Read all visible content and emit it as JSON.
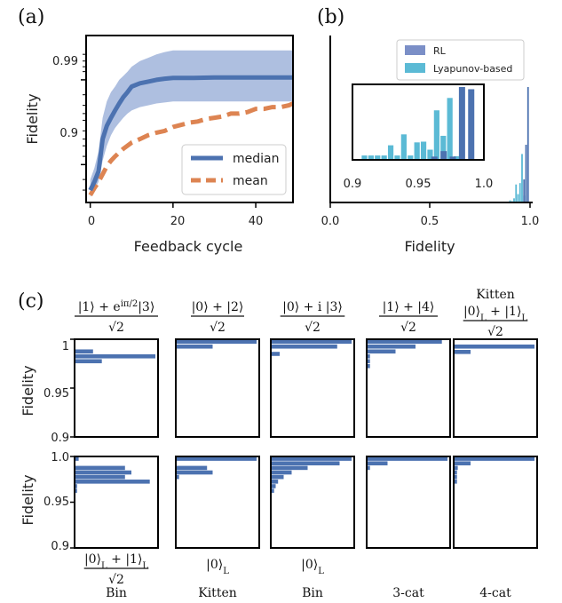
{
  "panel_labels": {
    "a": "(a)",
    "b": "(b)",
    "c": "(c)"
  },
  "colors": {
    "rl": "#4c72b0",
    "rl_band": "#a5b8dd",
    "mean": "#dd8452",
    "lyap": "#5bbad5",
    "axis": "#000000"
  },
  "panel_a": {
    "xlabel": "Feedback cycle",
    "ylabel": "Fidelity",
    "xticks": [
      "0",
      "20",
      "40"
    ],
    "yticks": [
      "0.9",
      "0.99"
    ],
    "legend": [
      "median",
      "mean"
    ]
  },
  "panel_b": {
    "xlabel": "Fidelity",
    "xticks": [
      "0.0",
      "0.5",
      "1.0"
    ],
    "inset_xticks": [
      "0.9",
      "0.95",
      "1.0"
    ],
    "legend": [
      "RL",
      "Lyapunov-based"
    ]
  },
  "panel_c": {
    "ylabel_top": "Fidelity",
    "ylabel_bottom": "Fidelity",
    "top_yticks": [
      "1",
      "0.95",
      "0.9"
    ],
    "bottom_yticks": [
      "1.0",
      "0.95",
      "0.9"
    ],
    "top_titles": [
      {
        "kind": "frac",
        "num": "|1⟩ + e^{iπ/2}|3⟩",
        "den": "√2"
      },
      {
        "kind": "frac",
        "num": "|0⟩ + |2⟩",
        "den": "√2"
      },
      {
        "kind": "frac",
        "num": "|0⟩ + i |3⟩",
        "den": "√2"
      },
      {
        "kind": "frac",
        "num": "|1⟩ +  |4⟩",
        "den": "√2"
      },
      {
        "kind": "frac",
        "pre": "Kitten",
        "num": "|0⟩L + |1⟩L",
        "den": "√2"
      }
    ],
    "bottom_titles": [
      {
        "kind": "frac",
        "num": "|0⟩L + |1⟩L",
        "den": "√2",
        "name": "Bin"
      },
      {
        "kind": "state",
        "num": "|0⟩L",
        "name": "Kitten"
      },
      {
        "kind": "state",
        "num": "|0⟩L",
        "name": "Bin"
      },
      {
        "kind": "none",
        "name": "3-cat"
      },
      {
        "kind": "none",
        "name": "4-cat"
      }
    ]
  },
  "chart_data": [
    {
      "type": "line",
      "panel": "a",
      "xlabel": "Feedback cycle",
      "ylabel": "Fidelity",
      "xlim": [
        -1,
        49
      ],
      "yscale": "log(1-F)",
      "ylim": [
        0.72,
        0.997
      ],
      "series": [
        {
          "name": "median",
          "x": [
            0,
            1,
            2,
            3,
            4,
            5,
            6,
            7,
            8,
            9,
            10,
            12,
            14,
            16,
            18,
            20,
            25,
            30,
            35,
            40,
            45,
            49
          ],
          "y": [
            0.8,
            0.84,
            0.88,
            0.95,
            0.965,
            0.972,
            0.977,
            0.981,
            0.984,
            0.986,
            0.988,
            0.989,
            0.9895,
            0.99,
            0.9903,
            0.9905,
            0.9905,
            0.9906,
            0.9906,
            0.9906,
            0.9906,
            0.9906
          ]
        },
        {
          "name": "mean",
          "x": [
            0,
            1,
            2,
            3,
            4,
            5,
            6,
            8,
            10,
            12,
            14,
            16,
            18,
            20,
            22,
            24,
            26,
            28,
            30,
            32,
            34,
            36,
            38,
            40,
            42,
            44,
            46,
            48,
            49
          ],
          "y": [
            0.77,
            0.81,
            0.84,
            0.87,
            0.895,
            0.91,
            0.92,
            0.935,
            0.945,
            0.95,
            0.955,
            0.958,
            0.96,
            0.964,
            0.966,
            0.968,
            0.969,
            0.971,
            0.972,
            0.973,
            0.975,
            0.975,
            0.976,
            0.978,
            0.978,
            0.979,
            0.979,
            0.98,
            0.981
          ]
        }
      ],
      "band": {
        "x": [
          0,
          1,
          2,
          3,
          4,
          5,
          6,
          7,
          8,
          9,
          10,
          12,
          14,
          16,
          18,
          20,
          25,
          30,
          35,
          40,
          45,
          49
        ],
        "lower": [
          0.76,
          0.8,
          0.84,
          0.91,
          0.94,
          0.955,
          0.963,
          0.968,
          0.972,
          0.975,
          0.977,
          0.979,
          0.98,
          0.981,
          0.9815,
          0.982,
          0.982,
          0.982,
          0.982,
          0.982,
          0.982,
          0.982
        ],
        "upper": [
          0.85,
          0.89,
          0.93,
          0.972,
          0.982,
          0.986,
          0.988,
          0.99,
          0.991,
          0.992,
          0.993,
          0.994,
          0.9945,
          0.995,
          0.9953,
          0.9955,
          0.9955,
          0.9955,
          0.9955,
          0.9955,
          0.9955,
          0.9955
        ]
      },
      "legend": "lower right"
    },
    {
      "type": "bar",
      "panel": "b",
      "xlabel": "Fidelity",
      "xlim": [
        0,
        1
      ],
      "legend": "top right",
      "series": [
        {
          "name": "RL",
          "x": [
            0.97,
            0.98,
            0.99
          ],
          "counts": [
            0.2,
            0.5,
            1.0
          ]
        },
        {
          "name": "Lyapunov-based",
          "x": [
            0.9,
            0.91,
            0.92,
            0.93,
            0.94,
            0.95,
            0.96,
            0.97
          ],
          "counts": [
            0.03,
            0.02,
            0.06,
            0.26,
            0.12,
            0.28,
            0.7,
            0.1
          ]
        }
      ],
      "inset": {
        "xlim": [
          0.9,
          1.0
        ],
        "rl": [
          [
            0.96,
            0.045
          ],
          [
            0.967,
            0.12
          ],
          [
            0.974,
            0.045
          ],
          [
            0.981,
            1.0
          ],
          [
            0.988,
            0.97
          ]
        ],
        "lyapunov": [
          [
            0.907,
            0.06
          ],
          [
            0.912,
            0.06
          ],
          [
            0.917,
            0.06
          ],
          [
            0.922,
            0.06
          ],
          [
            0.927,
            0.2
          ],
          [
            0.932,
            0.06
          ],
          [
            0.937,
            0.35
          ],
          [
            0.942,
            0.06
          ],
          [
            0.947,
            0.24
          ],
          [
            0.952,
            0.25
          ],
          [
            0.957,
            0.14
          ],
          [
            0.962,
            0.68
          ],
          [
            0.967,
            0.33
          ],
          [
            0.972,
            0.85
          ],
          [
            0.977,
            0.05
          ]
        ]
      }
    },
    {
      "type": "bar",
      "panel": "c",
      "orientation": "horizontal",
      "ylim": [
        0.9,
        1.0
      ],
      "xlim": [
        0,
        1
      ],
      "rows": [
        [
          {
            "title": "(|1⟩+e^{iπ/2}|3⟩)/√2",
            "y": [
              0.9875,
              0.9825,
              0.9775
            ],
            "len": [
              0.22,
              1.0,
              0.33
            ]
          },
          {
            "title": "(|0⟩+|2⟩)/√2",
            "y": [
              0.9975,
              0.9925
            ],
            "len": [
              1.0,
              0.45
            ]
          },
          {
            "title": "(|0⟩+i|3⟩)/√2",
            "y": [
              0.9975,
              0.9925,
              0.985
            ],
            "len": [
              1.0,
              0.82,
              0.1
            ]
          },
          {
            "title": "(|1⟩+|4⟩)/√2",
            "y": [
              0.9975,
              0.9925,
              0.9875,
              0.9825,
              0.9775,
              0.9725
            ],
            "len": [
              0.93,
              0.6,
              0.35,
              0.03,
              0.03,
              0.03
            ]
          },
          {
            "title": "Kitten (|0⟩L+|1⟩L)/√2",
            "y": [
              0.9925,
              0.987
            ],
            "len": [
              1.0,
              0.2
            ]
          }
        ],
        [
          {
            "title": "Bin (|0⟩L+|1⟩L)/√2",
            "y": [
              0.9975,
              0.9875,
              0.9825,
              0.9775,
              0.9725,
              0.9675,
              0.9625
            ],
            "len": [
              0.04,
              0.62,
              0.7,
              0.62,
              0.93,
              0.02,
              0.02
            ]
          },
          {
            "title": "Kitten |0⟩L",
            "y": [
              0.9975,
              0.9875,
              0.9825,
              0.9775
            ],
            "len": [
              1.0,
              0.38,
              0.45,
              0.03
            ]
          },
          {
            "title": "Bin |0⟩L",
            "y": [
              0.9975,
              0.9925,
              0.9875,
              0.9825,
              0.9775,
              0.9725,
              0.9675,
              0.9625
            ],
            "len": [
              1.0,
              0.85,
              0.45,
              0.25,
              0.15,
              0.08,
              0.05,
              0.03
            ]
          },
          {
            "title": "3-cat",
            "y": [
              0.9975,
              0.9925,
              0.9875
            ],
            "len": [
              1.0,
              0.25,
              0.03
            ]
          },
          {
            "title": "4-cat",
            "y": [
              0.9975,
              0.9925,
              0.9875,
              0.9825,
              0.9775,
              0.9725
            ],
            "len": [
              1.0,
              0.2,
              0.04,
              0.03,
              0.03,
              0.03
            ]
          }
        ]
      ]
    }
  ]
}
